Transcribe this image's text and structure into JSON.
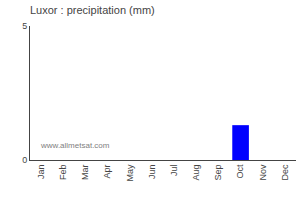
{
  "chart_data": {
    "type": "bar",
    "title": "Luxor : precipitation (mm)",
    "categories": [
      "Jan",
      "Feb",
      "Mar",
      "Apr",
      "May",
      "Jun",
      "Jul",
      "Aug",
      "Sep",
      "Oct",
      "Nov",
      "Dec"
    ],
    "values": [
      0,
      0,
      0,
      0,
      0,
      0,
      0,
      0,
      0,
      1.3,
      0,
      0
    ],
    "color": "#0000ff",
    "ylim": [
      0,
      5
    ],
    "yticks": [
      0,
      5
    ],
    "grid": false,
    "annotations": [
      "www.allmetsat.com"
    ]
  }
}
